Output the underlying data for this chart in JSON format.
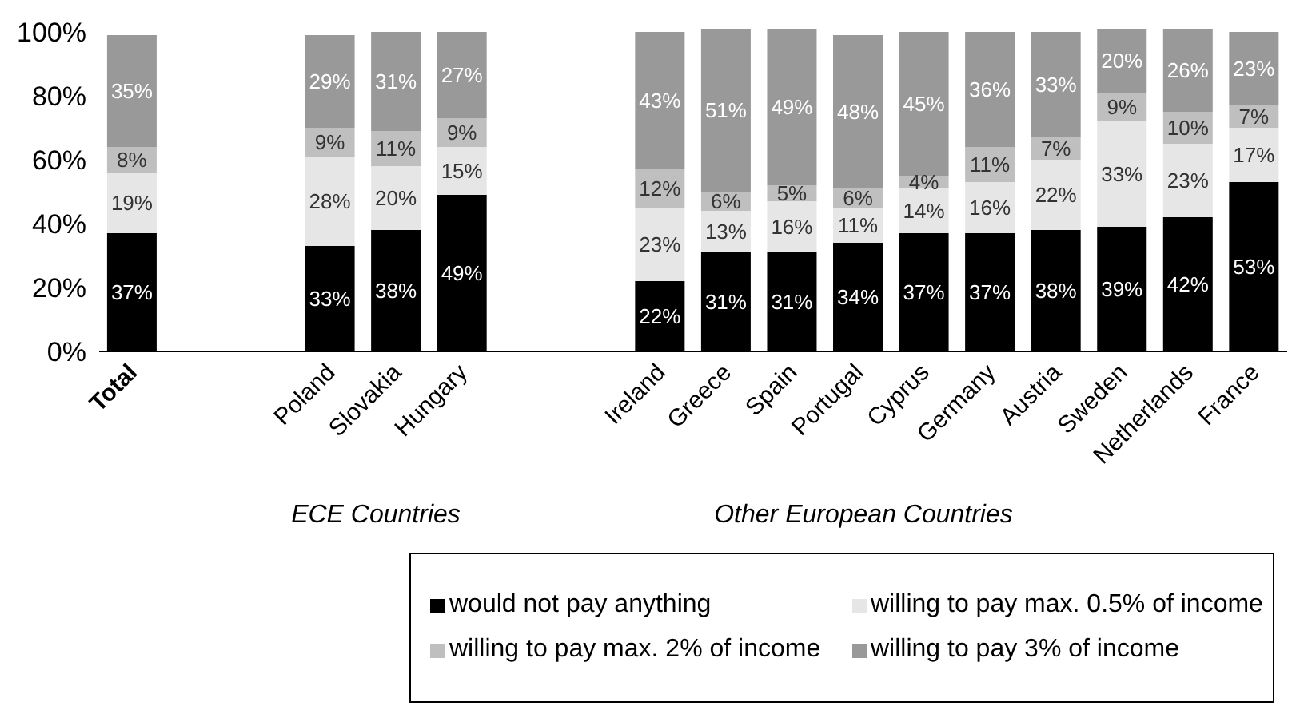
{
  "chart_data": {
    "type": "bar",
    "stacked": true,
    "grid": false,
    "legend": "bottom",
    "categories": [
      "Total",
      null,
      null,
      "Poland",
      "Slovakia",
      "Hungary",
      null,
      null,
      "Ireland",
      "Greece",
      "Spain",
      "Portugal",
      "Cyprus",
      "Germany",
      "Austria",
      "Sweden",
      "Netherlands",
      "France"
    ],
    "ylim": [
      0,
      101
    ],
    "yticks": [
      {
        "value": 0,
        "label": "0%"
      },
      {
        "value": 20,
        "label": "20%"
      },
      {
        "value": 40,
        "label": "40%"
      },
      {
        "value": 60,
        "label": "60%"
      },
      {
        "value": 80,
        "label": "80%"
      },
      {
        "value": 100,
        "label": "100%"
      }
    ],
    "series": [
      {
        "name": "would not pay anything",
        "color": "#000000",
        "values": [
          37,
          null,
          null,
          33,
          38,
          49,
          null,
          null,
          22,
          31,
          31,
          34,
          37,
          37,
          38,
          39,
          42,
          53
        ],
        "value_labels": [
          "37%",
          null,
          null,
          "33%",
          "38%",
          "49%",
          null,
          null,
          "22%",
          "31%",
          "31%",
          "34%",
          "37%",
          "37%",
          "38%",
          "39%",
          "42%",
          "53%"
        ]
      },
      {
        "name": "willing to pay max. 0.5% of income",
        "color": "#e6e6e6",
        "values": [
          19,
          null,
          null,
          28,
          20,
          15,
          null,
          null,
          23,
          13,
          16,
          11,
          14,
          16,
          22,
          33,
          23,
          17
        ],
        "value_labels": [
          "19%",
          null,
          null,
          "28%",
          "20%",
          "15%",
          null,
          null,
          "23%",
          "13%",
          "16%",
          "11%",
          "14%",
          "16%",
          "22%",
          "33%",
          "23%",
          "17%"
        ]
      },
      {
        "name": "willing to pay max. 2% of income",
        "color": "#bfbfbf",
        "values": [
          8,
          null,
          null,
          9,
          11,
          9,
          null,
          null,
          12,
          6,
          5,
          6,
          4,
          11,
          7,
          9,
          10,
          7
        ],
        "value_labels": [
          "8%",
          null,
          null,
          "9%",
          "11%",
          "9%",
          null,
          null,
          "12%",
          "6%",
          "5%",
          "6%",
          "4%",
          "11%",
          "7%",
          "9%",
          "10%",
          "7%"
        ]
      },
      {
        "name": "willing to pay 3% of income",
        "color": "#999999",
        "values": [
          35,
          null,
          null,
          29,
          31,
          27,
          null,
          null,
          43,
          51,
          49,
          48,
          45,
          36,
          33,
          20,
          26,
          23
        ],
        "value_labels": [
          "35%",
          null,
          null,
          "29%",
          "31%",
          "27%",
          null,
          null,
          "43%",
          "51%",
          "49%",
          "48%",
          "45%",
          "36%",
          "33%",
          "20%",
          "26%",
          "23%"
        ]
      }
    ],
    "annotations": [
      "ECE Countries",
      "Other European Countries"
    ]
  }
}
